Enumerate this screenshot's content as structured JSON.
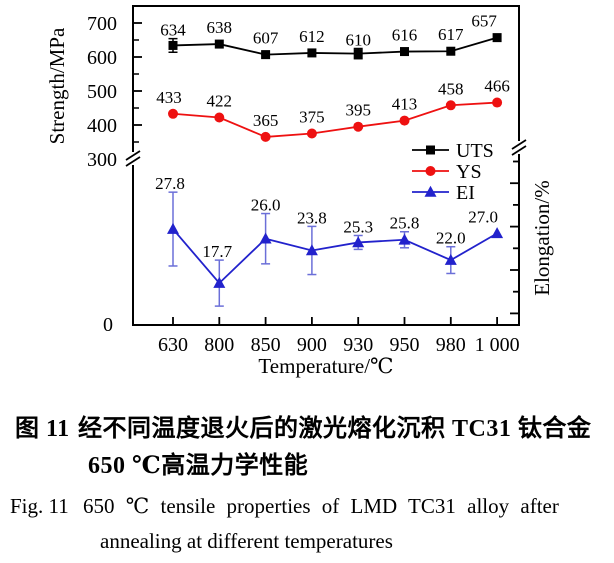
{
  "figure": {
    "caption_cn_label": "图 11",
    "caption_cn_line1": "经不同温度退火后的激光熔化沉积 TC31 钛合金",
    "caption_cn_line2": "650 ℃高温力学性能",
    "caption_en_label": "Fig. 11",
    "caption_en_line1": "650 ℃ tensile properties of LMD TC31 alloy after",
    "caption_en_line2": "annealing at different temperatures"
  },
  "chart_data": {
    "type": "line",
    "title": "",
    "categories": [
      "630",
      "800",
      "850",
      "900",
      "930",
      "950",
      "980",
      "1 000"
    ],
    "x_axis": {
      "label": "Temperature/℃"
    },
    "y_axis_left": {
      "label": "Strength/MPa",
      "major_ticks": [
        700,
        600,
        500,
        400,
        300
      ],
      "minor_ticks": [
        650,
        550,
        450,
        350
      ],
      "zero_label": "0",
      "broken_axis": true,
      "range_shown": [
        300,
        700
      ]
    },
    "y_axis_right": {
      "label": "Elongation/%",
      "broken_axis": true
    },
    "legend": {
      "position": "center-right",
      "entries": [
        "UTS",
        "YS",
        "EI"
      ]
    },
    "series": [
      {
        "name": "UTS",
        "axis": "left",
        "marker": "square",
        "color": "#000000",
        "error_color": "#000000",
        "values": [
          634,
          638,
          607,
          612,
          610,
          616,
          617,
          657
        ],
        "labels": [
          "634",
          "638",
          "607",
          "612",
          "610",
          "616",
          "617",
          "657"
        ],
        "errors": [
          20,
          0,
          0,
          0,
          15,
          0,
          0,
          0
        ],
        "label_dx": [
          0,
          0,
          0,
          0,
          0,
          0,
          0,
          -13
        ]
      },
      {
        "name": "YS",
        "axis": "left",
        "marker": "circle",
        "color": "#ee1111",
        "error_color": "#ee1111",
        "values": [
          433,
          422,
          365,
          375,
          395,
          413,
          458,
          466
        ],
        "labels": [
          "433",
          "422",
          "365",
          "375",
          "395",
          "413",
          "458",
          "466"
        ],
        "errors": [
          0,
          0,
          0,
          0,
          0,
          0,
          0,
          0
        ],
        "label_dx": [
          -4,
          0,
          0,
          0,
          0,
          0,
          0,
          0
        ]
      },
      {
        "name": "EI",
        "axis": "right",
        "marker": "triangle",
        "color": "#2222cc",
        "error_color": "#6b6fd8",
        "values": [
          27.8,
          17.7,
          26.0,
          23.8,
          25.3,
          25.8,
          22.0,
          27.0
        ],
        "labels": [
          "27.8",
          "17.7",
          "26.0",
          "23.8",
          "25.3",
          "25.8",
          "22.0",
          "27.0"
        ],
        "errors": [
          6.9,
          4.3,
          4.7,
          4.5,
          1.3,
          1.5,
          2.5,
          0
        ],
        "label_dx": [
          -3,
          -2,
          0,
          0,
          0,
          0,
          0,
          -14
        ]
      }
    ]
  }
}
